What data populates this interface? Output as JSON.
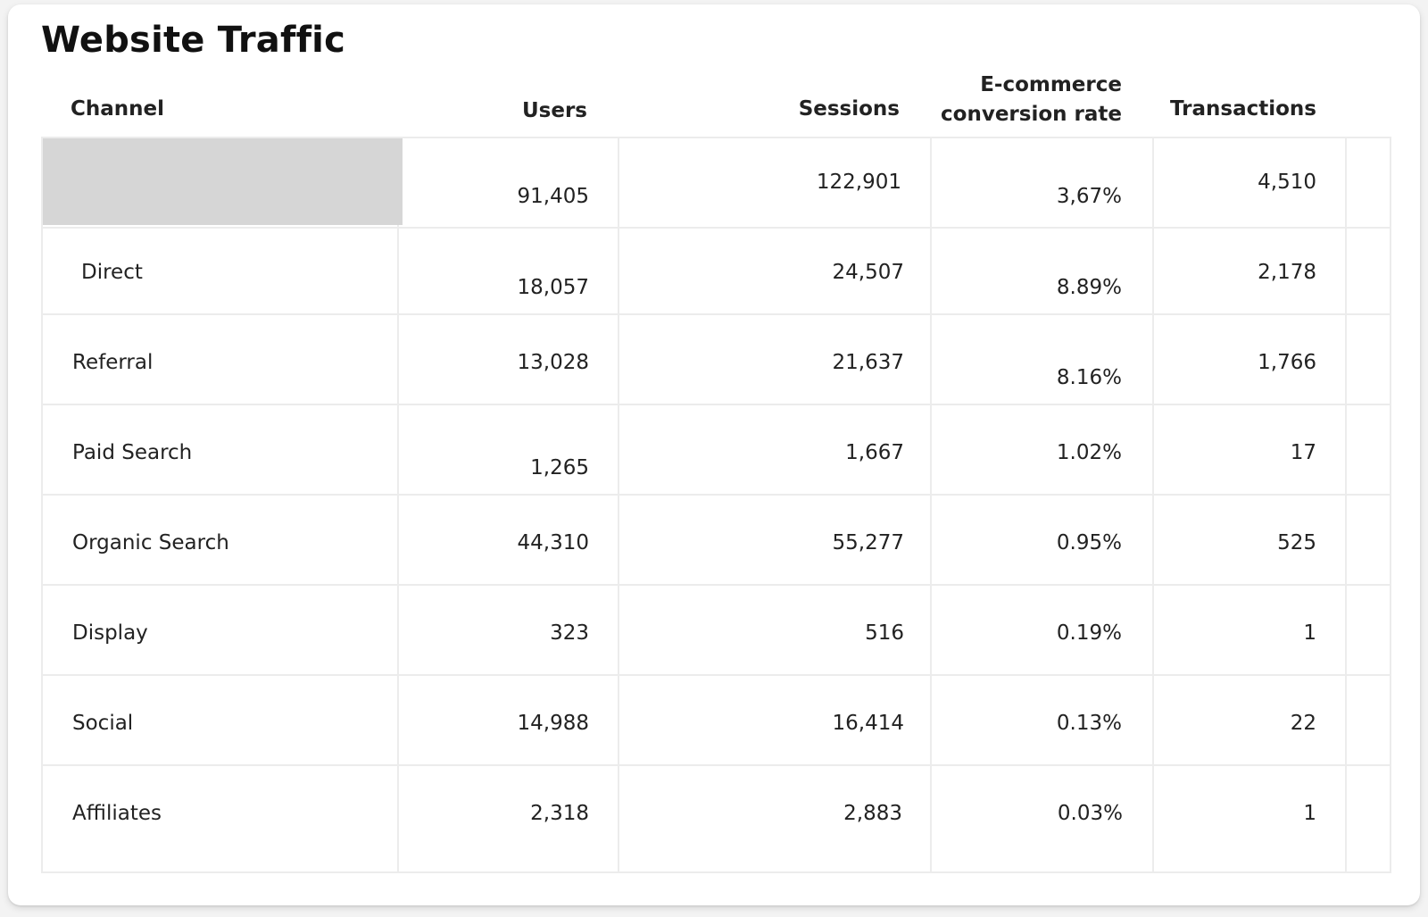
{
  "widget": {
    "title": "Website Traffic"
  },
  "table": {
    "headers": {
      "channel": "Channel",
      "users": "Users",
      "sessions": "Sessions",
      "conversion_line1": "E-commerce",
      "conversion_line2": "conversion rate",
      "transactions": "Transactions"
    },
    "total": {
      "channel": "",
      "users": "91,405",
      "sessions": "122,901",
      "conversion": "3,67%",
      "transactions": "4,510"
    },
    "rows": [
      {
        "channel": "Direct",
        "users": "18,057",
        "sessions": "24,507",
        "conversion": "8.89%",
        "transactions": "2,178"
      },
      {
        "channel": "Referral",
        "users": "13,028",
        "sessions": "21,637",
        "conversion": "8.16%",
        "transactions": "1,766"
      },
      {
        "channel": "Paid Search",
        "users": "1,265",
        "sessions": "1,667",
        "conversion": "1.02%",
        "transactions": "17"
      },
      {
        "channel": "Organic Search",
        "users": "44,310",
        "sessions": "55,277",
        "conversion": "0.95%",
        "transactions": "525"
      },
      {
        "channel": "Display",
        "users": "323",
        "sessions": "516",
        "conversion": "0.19%",
        "transactions": "1"
      },
      {
        "channel": "Social",
        "users": "14,988",
        "sessions": "16,414",
        "conversion": "0.13%",
        "transactions": "22"
      },
      {
        "channel": "Affiliates",
        "users": "2,318",
        "sessions": "2,883",
        "conversion": "0.03%",
        "transactions": "1"
      }
    ]
  },
  "colors": {
    "total_row_highlight": "#d6d6d6",
    "grid_line": "#ececec",
    "card_background": "#ffffff"
  }
}
